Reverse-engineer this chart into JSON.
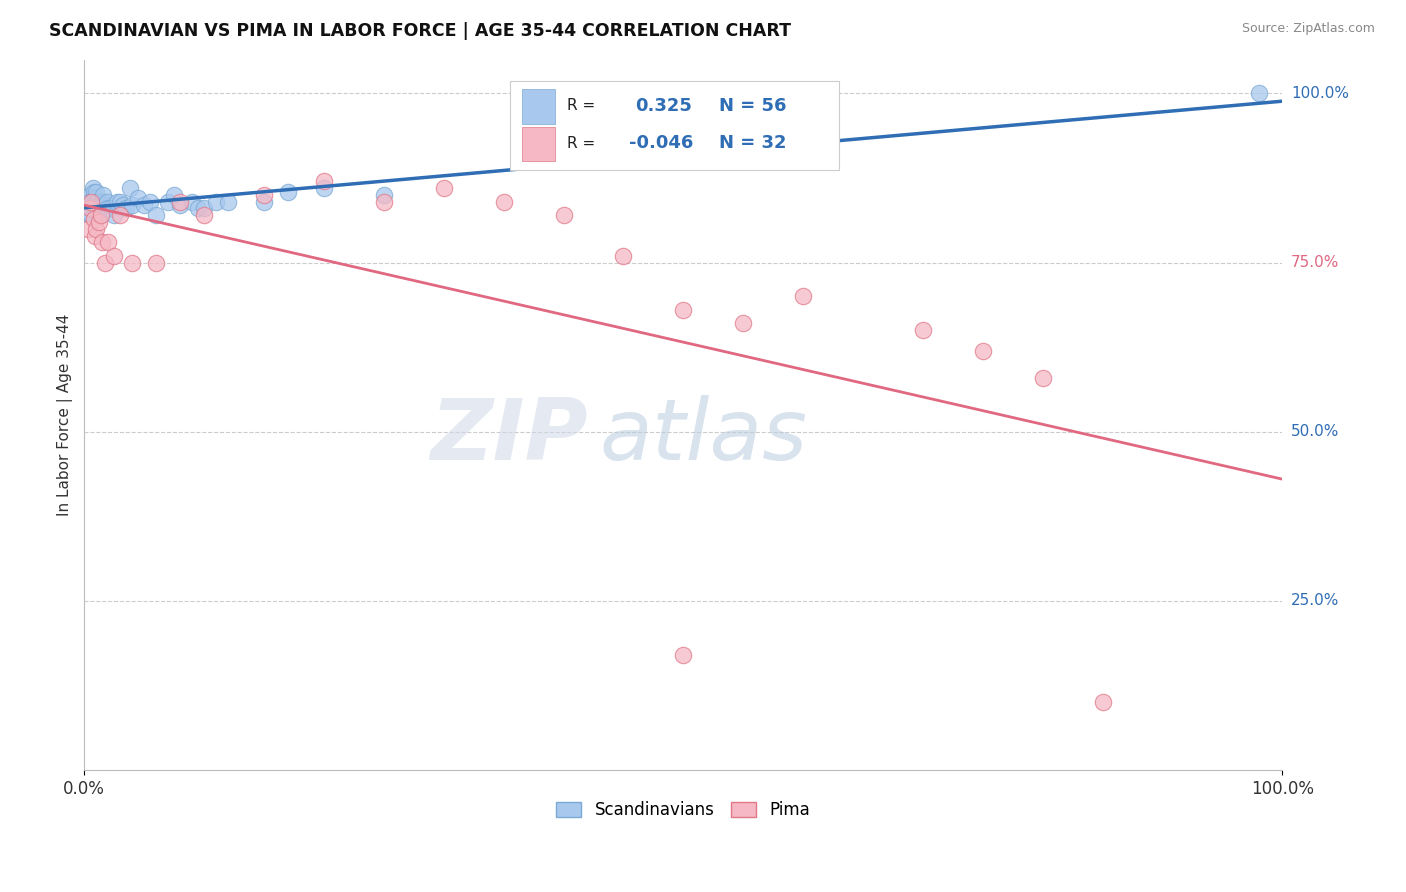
{
  "title": "SCANDINAVIAN VS PIMA IN LABOR FORCE | AGE 35-44 CORRELATION CHART",
  "source": "Source: ZipAtlas.com",
  "ylabel": "In Labor Force | Age 35-44",
  "xlim": [
    0.0,
    1.0
  ],
  "ylim": [
    0.0,
    1.05
  ],
  "x_tick_labels": [
    "0.0%",
    "100.0%"
  ],
  "y_tick_labels_right": [
    "25.0%",
    "50.0%",
    "75.0%",
    "100.0%"
  ],
  "y_ticks_right": [
    0.25,
    0.5,
    0.75,
    1.0
  ],
  "grid_color": "#cccccc",
  "background_color": "#ffffff",
  "scand_color": "#a8c8ee",
  "scand_edge_color": "#7aaad4",
  "pima_color": "#f5b8c4",
  "pima_edge_color": "#e07888",
  "scand_line_color": "#2f6db5",
  "pima_line_color": "#e06880",
  "R_scand": 0.325,
  "N_scand": 56,
  "R_pima": -0.046,
  "N_pima": 32,
  "watermark_zip": "ZIP",
  "watermark_atlas": "atlas",
  "scand_x": [
    0.002,
    0.003,
    0.004,
    0.004,
    0.005,
    0.005,
    0.006,
    0.006,
    0.007,
    0.007,
    0.007,
    0.008,
    0.008,
    0.009,
    0.009,
    0.01,
    0.01,
    0.01,
    0.011,
    0.011,
    0.012,
    0.012,
    0.013,
    0.014,
    0.015,
    0.015,
    0.016,
    0.017,
    0.018,
    0.019,
    0.02,
    0.022,
    0.025,
    0.027,
    0.03,
    0.032,
    0.035,
    0.038,
    0.04,
    0.045,
    0.05,
    0.055,
    0.06,
    0.07,
    0.075,
    0.08,
    0.09,
    0.095,
    0.1,
    0.11,
    0.12,
    0.15,
    0.17,
    0.2,
    0.25,
    0.98
  ],
  "scand_y": [
    0.83,
    0.84,
    0.825,
    0.835,
    0.82,
    0.85,
    0.82,
    0.84,
    0.83,
    0.845,
    0.86,
    0.835,
    0.855,
    0.83,
    0.845,
    0.825,
    0.84,
    0.855,
    0.83,
    0.84,
    0.82,
    0.835,
    0.82,
    0.835,
    0.825,
    0.84,
    0.85,
    0.835,
    0.83,
    0.84,
    0.83,
    0.83,
    0.82,
    0.84,
    0.84,
    0.835,
    0.83,
    0.86,
    0.835,
    0.845,
    0.835,
    0.84,
    0.82,
    0.84,
    0.85,
    0.835,
    0.84,
    0.83,
    0.83,
    0.84,
    0.84,
    0.84,
    0.855,
    0.86,
    0.85,
    1.0
  ],
  "pima_x": [
    0.003,
    0.005,
    0.006,
    0.008,
    0.009,
    0.01,
    0.012,
    0.014,
    0.015,
    0.017,
    0.02,
    0.025,
    0.03,
    0.04,
    0.06,
    0.08,
    0.1,
    0.15,
    0.2,
    0.25,
    0.3,
    0.35,
    0.4,
    0.45,
    0.5,
    0.55,
    0.6,
    0.7,
    0.75,
    0.8,
    0.5,
    0.85
  ],
  "pima_y": [
    0.8,
    0.83,
    0.84,
    0.815,
    0.79,
    0.8,
    0.81,
    0.82,
    0.78,
    0.75,
    0.78,
    0.76,
    0.82,
    0.75,
    0.75,
    0.84,
    0.82,
    0.85,
    0.87,
    0.84,
    0.86,
    0.84,
    0.82,
    0.76,
    0.68,
    0.66,
    0.7,
    0.65,
    0.62,
    0.58,
    0.17,
    0.1
  ]
}
